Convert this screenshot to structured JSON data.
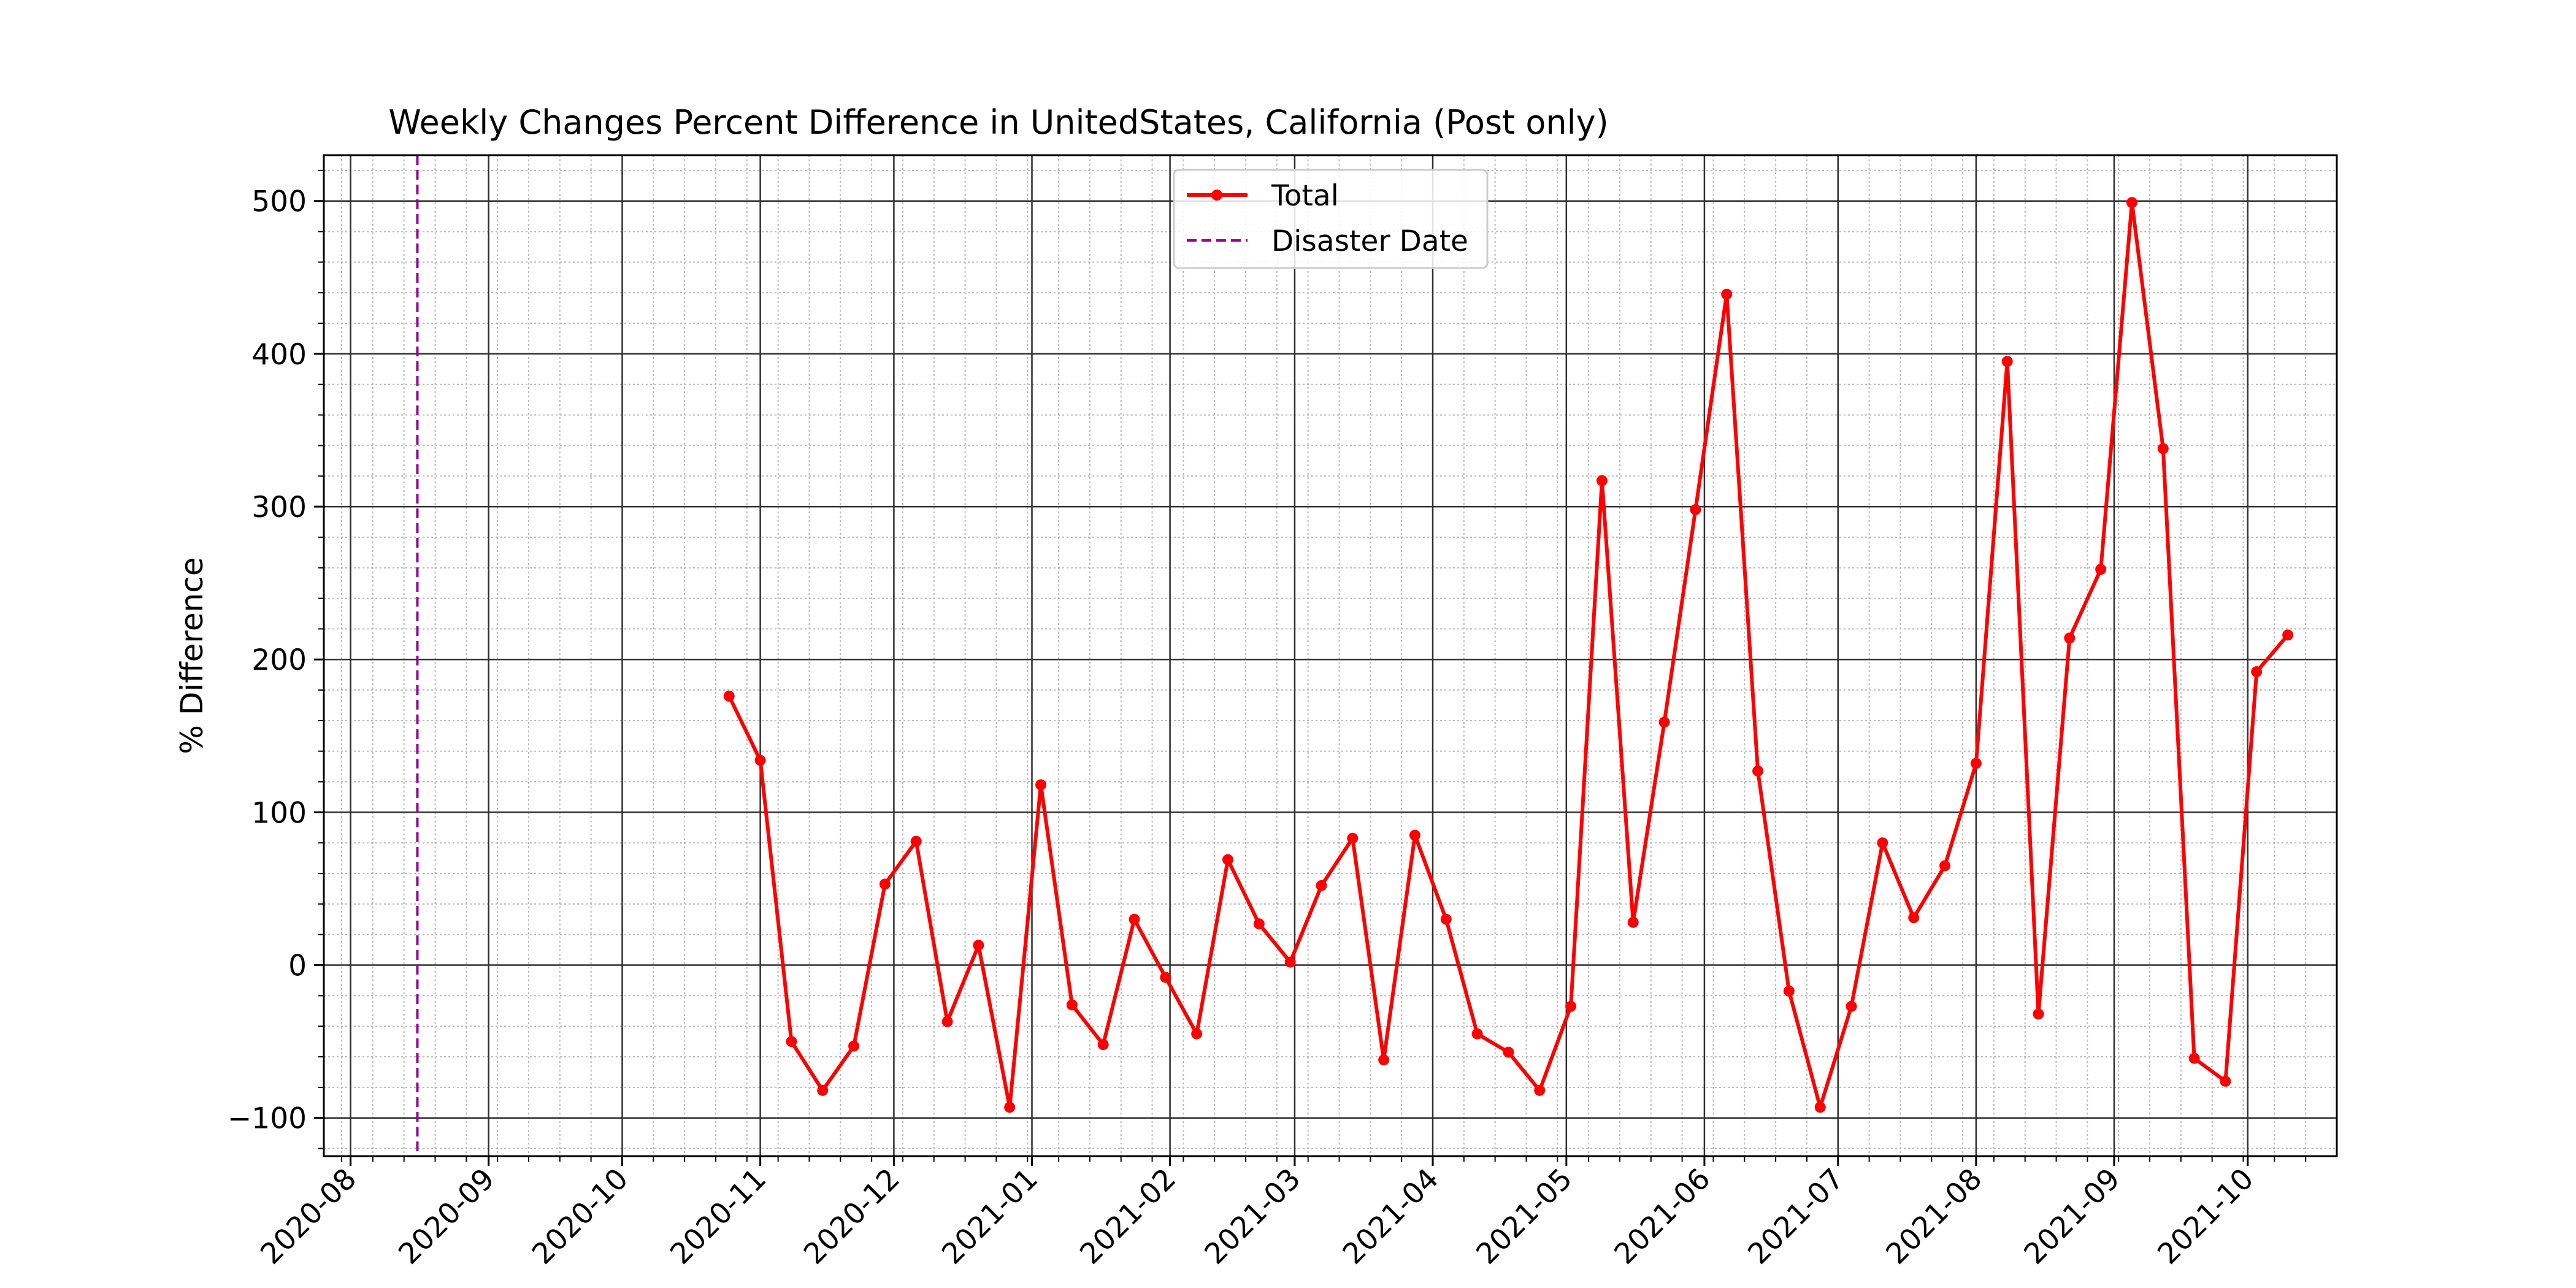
{
  "chart_data": {
    "type": "line",
    "title": "Weekly Changes Percent Difference in UnitedStates, California (Post only)",
    "xlabel": "",
    "ylabel": "% Difference",
    "x_axis_type": "date",
    "xlim": [
      "2020-07-26",
      "2021-10-21"
    ],
    "ylim": [
      -125,
      530
    ],
    "x_ticks": [
      "2020-08",
      "2020-09",
      "2020-10",
      "2020-11",
      "2020-12",
      "2021-01",
      "2021-02",
      "2021-03",
      "2021-04",
      "2021-05",
      "2021-06",
      "2021-07",
      "2021-08",
      "2021-09",
      "2021-10"
    ],
    "y_ticks": [
      -100,
      0,
      100,
      200,
      300,
      400,
      500
    ],
    "y_tick_labels": [
      "−100",
      "0",
      "100",
      "200",
      "300",
      "400",
      "500"
    ],
    "grid": {
      "major": true,
      "minor": true
    },
    "legend": {
      "placement": "upper center",
      "entries": [
        "Total",
        "Disaster Date"
      ]
    },
    "series": [
      {
        "name": "Total",
        "color": "#ff0000",
        "marker": "circle",
        "points": [
          {
            "x": "2020-10-25",
            "y": 176
          },
          {
            "x": "2020-11-01",
            "y": 134
          },
          {
            "x": "2020-11-08",
            "y": -50
          },
          {
            "x": "2020-11-15",
            "y": -82
          },
          {
            "x": "2020-11-22",
            "y": -53
          },
          {
            "x": "2020-11-29",
            "y": 53
          },
          {
            "x": "2020-12-06",
            "y": 81
          },
          {
            "x": "2020-12-13",
            "y": -37
          },
          {
            "x": "2020-12-20",
            "y": 13
          },
          {
            "x": "2020-12-27",
            "y": -93
          },
          {
            "x": "2021-01-03",
            "y": 118
          },
          {
            "x": "2021-01-10",
            "y": -26
          },
          {
            "x": "2021-01-17",
            "y": -52
          },
          {
            "x": "2021-01-24",
            "y": 30
          },
          {
            "x": "2021-01-31",
            "y": -8
          },
          {
            "x": "2021-02-07",
            "y": -45
          },
          {
            "x": "2021-02-14",
            "y": 69
          },
          {
            "x": "2021-02-21",
            "y": 27
          },
          {
            "x": "2021-02-28",
            "y": 2
          },
          {
            "x": "2021-03-07",
            "y": 52
          },
          {
            "x": "2021-03-14",
            "y": 83
          },
          {
            "x": "2021-03-21",
            "y": -62
          },
          {
            "x": "2021-03-28",
            "y": 85
          },
          {
            "x": "2021-04-04",
            "y": 30
          },
          {
            "x": "2021-04-11",
            "y": -45
          },
          {
            "x": "2021-04-18",
            "y": -57
          },
          {
            "x": "2021-04-25",
            "y": -82
          },
          {
            "x": "2021-05-02",
            "y": -27
          },
          {
            "x": "2021-05-09",
            "y": 317
          },
          {
            "x": "2021-05-16",
            "y": 28
          },
          {
            "x": "2021-05-23",
            "y": 159
          },
          {
            "x": "2021-05-30",
            "y": 298
          },
          {
            "x": "2021-06-06",
            "y": 439
          },
          {
            "x": "2021-06-13",
            "y": 127
          },
          {
            "x": "2021-06-20",
            "y": -17
          },
          {
            "x": "2021-06-27",
            "y": -93
          },
          {
            "x": "2021-07-04",
            "y": -27
          },
          {
            "x": "2021-07-11",
            "y": 80
          },
          {
            "x": "2021-07-18",
            "y": 31
          },
          {
            "x": "2021-07-25",
            "y": 65
          },
          {
            "x": "2021-08-01",
            "y": 132
          },
          {
            "x": "2021-08-08",
            "y": 395
          },
          {
            "x": "2021-08-15",
            "y": -32
          },
          {
            "x": "2021-08-22",
            "y": 214
          },
          {
            "x": "2021-08-29",
            "y": 259
          },
          {
            "x": "2021-09-05",
            "y": 499
          },
          {
            "x": "2021-09-12",
            "y": 338
          },
          {
            "x": "2021-09-19",
            "y": -61
          },
          {
            "x": "2021-09-26",
            "y": -76
          },
          {
            "x": "2021-10-03",
            "y": 192
          },
          {
            "x": "2021-10-10",
            "y": 216
          }
        ]
      }
    ],
    "disaster_date": {
      "x": "2020-08-16",
      "label": "Disaster Date",
      "color": "#990099",
      "style": "dashed"
    }
  }
}
